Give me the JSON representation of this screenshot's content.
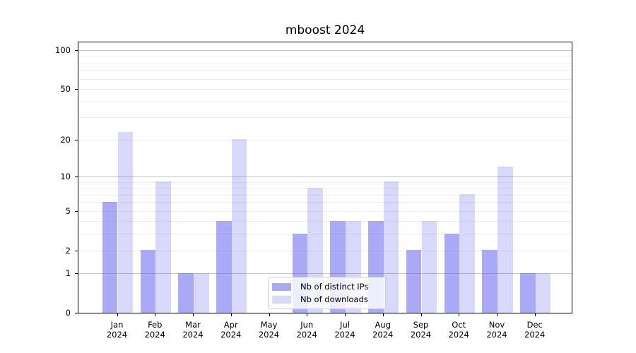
{
  "title": "mboost 2024",
  "chart_data": {
    "type": "bar",
    "title": "mboost 2024",
    "categories": [
      "Jan 2024",
      "Feb 2024",
      "Mar 2024",
      "Apr 2024",
      "May 2024",
      "Jun 2024",
      "Jul 2024",
      "Aug 2024",
      "Sep 2024",
      "Oct 2024",
      "Nov 2024",
      "Dec 2024"
    ],
    "x_tick_lines": [
      {
        "month": "Jan",
        "year": "2024"
      },
      {
        "month": "Feb",
        "year": "2024"
      },
      {
        "month": "Mar",
        "year": "2024"
      },
      {
        "month": "Apr",
        "year": "2024"
      },
      {
        "month": "May",
        "year": "2024"
      },
      {
        "month": "Jun",
        "year": "2024"
      },
      {
        "month": "Jul",
        "year": "2024"
      },
      {
        "month": "Aug",
        "year": "2024"
      },
      {
        "month": "Sep",
        "year": "2024"
      },
      {
        "month": "Oct",
        "year": "2024"
      },
      {
        "month": "Nov",
        "year": "2024"
      },
      {
        "month": "Dec",
        "year": "2024"
      }
    ],
    "series": [
      {
        "name": "Nb of distinct IPs",
        "color": "#aaaaf6",
        "fill": "rgba(85,85,238,0.5)",
        "values": [
          6,
          2,
          1,
          4,
          0,
          3,
          4,
          4,
          2,
          3,
          2,
          1
        ]
      },
      {
        "name": "Nb of downloads",
        "color": "#d9d9f8",
        "fill": "rgba(85,85,238,0.23)",
        "values": [
          23,
          9,
          1,
          20,
          0,
          8,
          4,
          9,
          4,
          7,
          12,
          1
        ]
      }
    ],
    "y_scale": "log1p",
    "y_ticks": [
      0,
      1,
      2,
      5,
      10,
      20,
      50,
      100
    ],
    "y_major_gridlines": [
      1,
      10,
      100
    ],
    "y_minor_gridlines": [
      2,
      3,
      4,
      5,
      6,
      7,
      8,
      9,
      20,
      30,
      40,
      50,
      60,
      70,
      80,
      90
    ],
    "ylim": [
      0,
      116
    ],
    "xlabel": "",
    "ylabel": "",
    "grid": true,
    "legend": {
      "position": "lower center",
      "entries": [
        "Nb of distinct IPs",
        "Nb of downloads"
      ]
    }
  },
  "colors": {
    "bar_dark": "#aaaaf6",
    "bar_light": "#d9d9f8",
    "major_grid": "#c3c3c3",
    "minor_grid": "#ededed",
    "axis": "#000000",
    "legend_border": "#cccccc"
  }
}
